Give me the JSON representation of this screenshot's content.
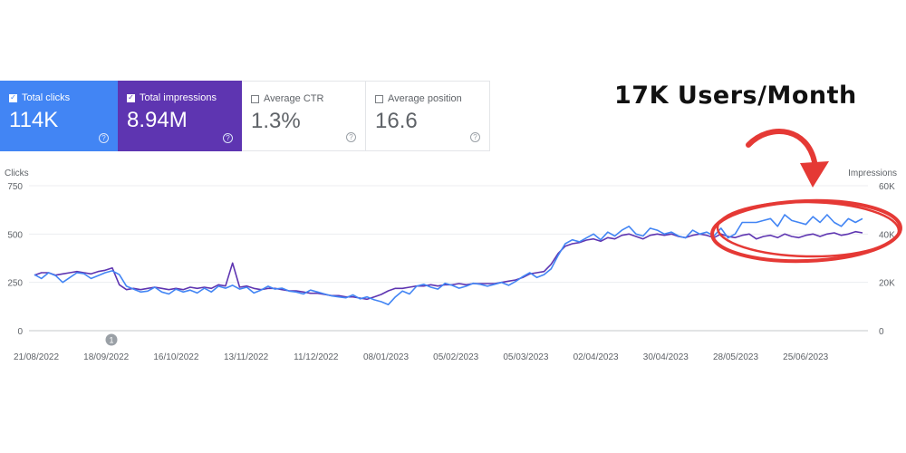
{
  "metrics": [
    {
      "label": "Total clicks",
      "value": "114K",
      "checked": true,
      "color": "#4285f4"
    },
    {
      "label": "Total impressions",
      "value": "8.94M",
      "checked": true,
      "color": "#5e35b1"
    },
    {
      "label": "Average CTR",
      "value": "1.3%",
      "checked": false
    },
    {
      "label": "Average position",
      "value": "16.6",
      "checked": false
    }
  ],
  "annotation": {
    "text": "17K Users/Month",
    "color": "#e53935"
  },
  "chart_data": {
    "type": "line",
    "x_tick_labels": [
      "21/08/2022",
      "18/09/2022",
      "16/10/2022",
      "13/11/2022",
      "11/12/2022",
      "08/01/2023",
      "05/02/2023",
      "05/03/2023",
      "02/04/2023",
      "30/04/2023",
      "28/05/2023",
      "25/06/2023"
    ],
    "y_left_label": "Clicks",
    "y_left_ticks": [
      "0",
      "250",
      "500",
      "750"
    ],
    "y_left_range": [
      0,
      750
    ],
    "y_right_label": "Impressions",
    "y_right_ticks": [
      "0",
      "20K",
      "40K",
      "60K"
    ],
    "y_right_range": [
      0,
      60000
    ],
    "event_marker": {
      "date": "13/09/2022",
      "label": "1"
    },
    "grid": true,
    "series": [
      {
        "axis": "left",
        "color": "#4285f4",
        "values": [
          290,
          270,
          300,
          285,
          250,
          275,
          300,
          295,
          270,
          285,
          300,
          310,
          290,
          230,
          215,
          200,
          205,
          225,
          200,
          190,
          215,
          200,
          210,
          195,
          220,
          200,
          230,
          220,
          235,
          215,
          225,
          195,
          210,
          230,
          215,
          220,
          205,
          200,
          190,
          210,
          200,
          190,
          180,
          175,
          170,
          185,
          165,
          175,
          160,
          150,
          135,
          175,
          205,
          190,
          230,
          240,
          225,
          215,
          245,
          235,
          220,
          230,
          245,
          240,
          230,
          240,
          250,
          235,
          255,
          280,
          300,
          275,
          290,
          320,
          390,
          450,
          470,
          460,
          480,
          500,
          470,
          510,
          490,
          520,
          540,
          500,
          490,
          530,
          520,
          500,
          510,
          490,
          480,
          520,
          500,
          510,
          490,
          530,
          480,
          500,
          560,
          560,
          560,
          570,
          580,
          540,
          600,
          570,
          560,
          550,
          590,
          560,
          600,
          560,
          540,
          580,
          560,
          580
        ]
      },
      {
        "axis": "right",
        "color": "#5e35b1",
        "values": [
          23000,
          24000,
          24000,
          23000,
          23500,
          24000,
          24500,
          24000,
          23500,
          24500,
          25000,
          26000,
          19000,
          17000,
          17500,
          17000,
          17500,
          18000,
          17500,
          17000,
          17500,
          17000,
          18000,
          17500,
          18000,
          17500,
          19000,
          18500,
          28000,
          18000,
          18500,
          17500,
          17000,
          17500,
          17500,
          17000,
          16500,
          16500,
          16000,
          15500,
          15500,
          15000,
          14500,
          14500,
          14000,
          14000,
          13500,
          13000,
          14000,
          15000,
          16500,
          17500,
          17500,
          18000,
          18500,
          18500,
          19000,
          18500,
          19000,
          19000,
          19500,
          19000,
          19500,
          19500,
          19500,
          19500,
          20000,
          20500,
          21000,
          22000,
          23500,
          24000,
          24500,
          27500,
          32000,
          35000,
          36000,
          36500,
          37500,
          38000,
          37000,
          38500,
          38000,
          39500,
          40000,
          39000,
          38000,
          39500,
          40000,
          39500,
          40000,
          39000,
          38500,
          39500,
          40000,
          39500,
          38500,
          40000,
          39000,
          38500,
          39500,
          40000,
          38000,
          39000,
          39500,
          38500,
          40000,
          39000,
          38500,
          39500,
          40000,
          39000,
          40000,
          40500,
          39500,
          40000,
          41000,
          40500
        ]
      }
    ]
  }
}
